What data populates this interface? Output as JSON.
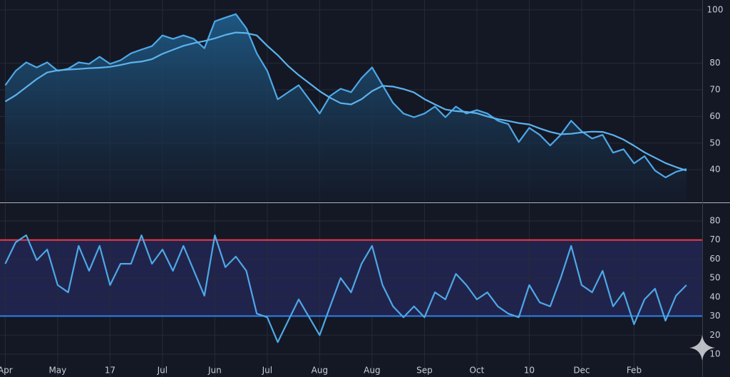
{
  "chart_data": [
    {
      "type": "line",
      "x": [
        0,
        2,
        4,
        6,
        8,
        10,
        12,
        14,
        16,
        18,
        20,
        22,
        24,
        26,
        28,
        30,
        32,
        34,
        36,
        38,
        40,
        42,
        44,
        46,
        48,
        50,
        52,
        54,
        56,
        58,
        60,
        62,
        64,
        66,
        68,
        70,
        72,
        74,
        76,
        78,
        80,
        82,
        84,
        86,
        88,
        90,
        92,
        94,
        96,
        98,
        100,
        102,
        104,
        106,
        108,
        110,
        112,
        114,
        116,
        118,
        120,
        122,
        124,
        126,
        128,
        130
      ],
      "series": [
        {
          "color": "#4ea8e8",
          "fill": true,
          "values": [
            71.7,
            77.1,
            80.3,
            78.4,
            80.3,
            77.1,
            77.9,
            80.3,
            79.7,
            82.4,
            79.7,
            81.1,
            83.7,
            85.1,
            86.4,
            90.4,
            89.1,
            90.4,
            89.1,
            85.6,
            95.7,
            97.1,
            98.4,
            93.1,
            83.7,
            77.1,
            66.4,
            69.1,
            71.7,
            66.4,
            61.1,
            67.7,
            70.4,
            69.1,
            74.4,
            78.4,
            71.7,
            65.1,
            61.1,
            59.7,
            61.1,
            63.7,
            59.7,
            63.7,
            61.1,
            62.4,
            61.1,
            58.4,
            57.1,
            50.4,
            55.7,
            53.1,
            49.1,
            53.1,
            58.4,
            54.4,
            51.7,
            53.1,
            46.4,
            47.7,
            42.4,
            45.1,
            39.7,
            37.1,
            39.2,
            40.3
          ]
        },
        {
          "color": "#5cb3ee",
          "values": [
            65.6,
            68,
            71,
            74,
            76.5,
            77.3,
            77.6,
            77.8,
            78.1,
            78.3,
            78.6,
            79.3,
            80.2,
            80.6,
            81.5,
            83.5,
            85,
            86.5,
            87.5,
            88.3,
            89.3,
            90.6,
            91.5,
            91.3,
            90.4,
            86.5,
            83,
            78.9,
            75.5,
            72.5,
            69.5,
            67,
            65,
            64.5,
            66.5,
            69.5,
            71.5,
            71.2,
            70.3,
            69,
            66.5,
            64.5,
            62.6,
            62,
            61.7,
            61.2,
            60,
            59,
            58.3,
            57.5,
            57,
            55.5,
            54.2,
            53.3,
            53.5,
            54,
            54.3,
            54.2,
            53,
            51.3,
            49,
            46.5,
            44.5,
            42.5,
            41,
            39.7
          ]
        }
      ],
      "xlim": [
        -1,
        133
      ],
      "xticks": [
        0,
        10,
        20,
        30,
        40,
        50,
        60,
        70,
        80,
        90,
        100,
        110,
        120
      ],
      "ylim": [
        28,
        103.7
      ],
      "yticks": [
        40,
        50,
        60,
        70,
        80,
        100
      ],
      "grid": true
    },
    {
      "type": "line",
      "x": [
        0,
        2,
        4,
        6,
        8,
        10,
        12,
        14,
        16,
        18,
        20,
        22,
        24,
        26,
        28,
        30,
        32,
        34,
        36,
        38,
        40,
        42,
        44,
        46,
        48,
        50,
        52,
        54,
        56,
        58,
        60,
        62,
        64,
        66,
        68,
        70,
        72,
        74,
        76,
        78,
        80,
        82,
        84,
        86,
        88,
        90,
        92,
        94,
        96,
        98,
        100,
        102,
        104,
        106,
        108,
        110,
        112,
        114,
        116,
        118,
        120,
        122,
        124,
        126,
        128,
        130
      ],
      "series": [
        {
          "color": "#4ea8e8",
          "values": [
            57.5,
            68.8,
            72.5,
            59.4,
            65,
            46.3,
            42.5,
            66.9,
            53.8,
            66.9,
            46.3,
            57.5,
            57.5,
            72.5,
            57.5,
            65,
            53.8,
            66.9,
            53.8,
            40.7,
            72.5,
            55.7,
            61.3,
            53.8,
            31.3,
            29.4,
            16.3,
            27.6,
            38.8,
            29.4,
            20,
            35.1,
            50,
            42.5,
            57.5,
            66.9,
            46.3,
            35.1,
            29.4,
            35.1,
            29.4,
            42.5,
            38.8,
            52.2,
            46.3,
            38.8,
            42.5,
            35.1,
            31.3,
            29.4,
            46.3,
            37.2,
            35.1,
            50,
            66.9,
            46.3,
            42.5,
            53.8,
            35.1,
            42.5,
            25.7,
            38.8,
            44.4,
            27.6,
            40.7,
            46.3
          ]
        }
      ],
      "levels": [
        {
          "value": 70,
          "color": "#f23645"
        },
        {
          "value": 30,
          "color": "#2f80ed"
        }
      ],
      "band_color": "#2a2f6e",
      "xlim": [
        -1,
        133
      ],
      "xticks": [
        {
          "value": 0,
          "label": "Apr"
        },
        {
          "value": 10,
          "label": "May"
        },
        {
          "value": 20,
          "label": "17"
        },
        {
          "value": 30,
          "label": "Jul"
        },
        {
          "value": 40,
          "label": "Jun"
        },
        {
          "value": 50,
          "label": "Jul"
        },
        {
          "value": 60,
          "label": "Aug"
        },
        {
          "value": 70,
          "label": "Aug"
        },
        {
          "value": 80,
          "label": "Sep"
        },
        {
          "value": 90,
          "label": "Oct"
        },
        {
          "value": 100,
          "label": "10"
        },
        {
          "value": 110,
          "label": "Dec"
        },
        {
          "value": 120,
          "label": "Feb"
        }
      ],
      "ylim": [
        -2,
        89
      ],
      "yticks": [
        10,
        20,
        30,
        40,
        50,
        60,
        70,
        80
      ],
      "grid": true
    }
  ]
}
